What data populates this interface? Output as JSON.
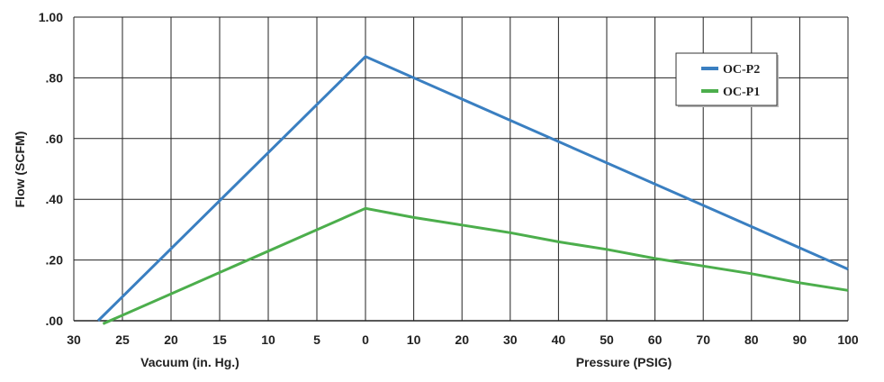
{
  "chart_data": {
    "type": "line",
    "ylabel": "Flow (SCFM)",
    "xlabel_vacuum": "Vacuum (in. Hg.)",
    "xlabel_pressure": "Pressure (PSIG)",
    "ylim": [
      0,
      1.0
    ],
    "y_ticks": [
      {
        "value": 0,
        "label": ".00"
      },
      {
        "value": 0.2,
        "label": ".20"
      },
      {
        "value": 0.4,
        "label": ".40"
      },
      {
        "value": 0.6,
        "label": ".60"
      },
      {
        "value": 0.8,
        "label": ".80"
      },
      {
        "value": 1.0,
        "label": "1.00"
      }
    ],
    "x_ticks": [
      "30",
      "25",
      "20",
      "15",
      "10",
      "5",
      "0",
      "10",
      "20",
      "30",
      "40",
      "50",
      "60",
      "70",
      "80",
      "90",
      "100"
    ],
    "grid": true,
    "legend_position": "top-right",
    "series": [
      {
        "name": "OC-P2",
        "color": "#3a7fc1",
        "points": [
          {
            "side": "vacuum",
            "x": 27.5,
            "y": 0.0
          },
          {
            "side": "vacuum",
            "x": 0,
            "y": 0.87
          },
          {
            "side": "pressure",
            "x": 100,
            "y": 0.17
          }
        ]
      },
      {
        "name": "OC-P1",
        "color": "#4cae4c",
        "points": [
          {
            "side": "vacuum",
            "x": 27,
            "y": -0.01
          },
          {
            "side": "vacuum",
            "x": 0,
            "y": 0.37
          },
          {
            "side": "pressure",
            "x": 10,
            "y": 0.34
          },
          {
            "side": "pressure",
            "x": 20,
            "y": 0.315
          },
          {
            "side": "pressure",
            "x": 30,
            "y": 0.29
          },
          {
            "side": "pressure",
            "x": 40,
            "y": 0.26
          },
          {
            "side": "pressure",
            "x": 50,
            "y": 0.235
          },
          {
            "side": "pressure",
            "x": 60,
            "y": 0.205
          },
          {
            "side": "pressure",
            "x": 70,
            "y": 0.18
          },
          {
            "side": "pressure",
            "x": 80,
            "y": 0.155
          },
          {
            "side": "pressure",
            "x": 90,
            "y": 0.125
          },
          {
            "side": "pressure",
            "x": 100,
            "y": 0.1
          }
        ]
      }
    ]
  }
}
